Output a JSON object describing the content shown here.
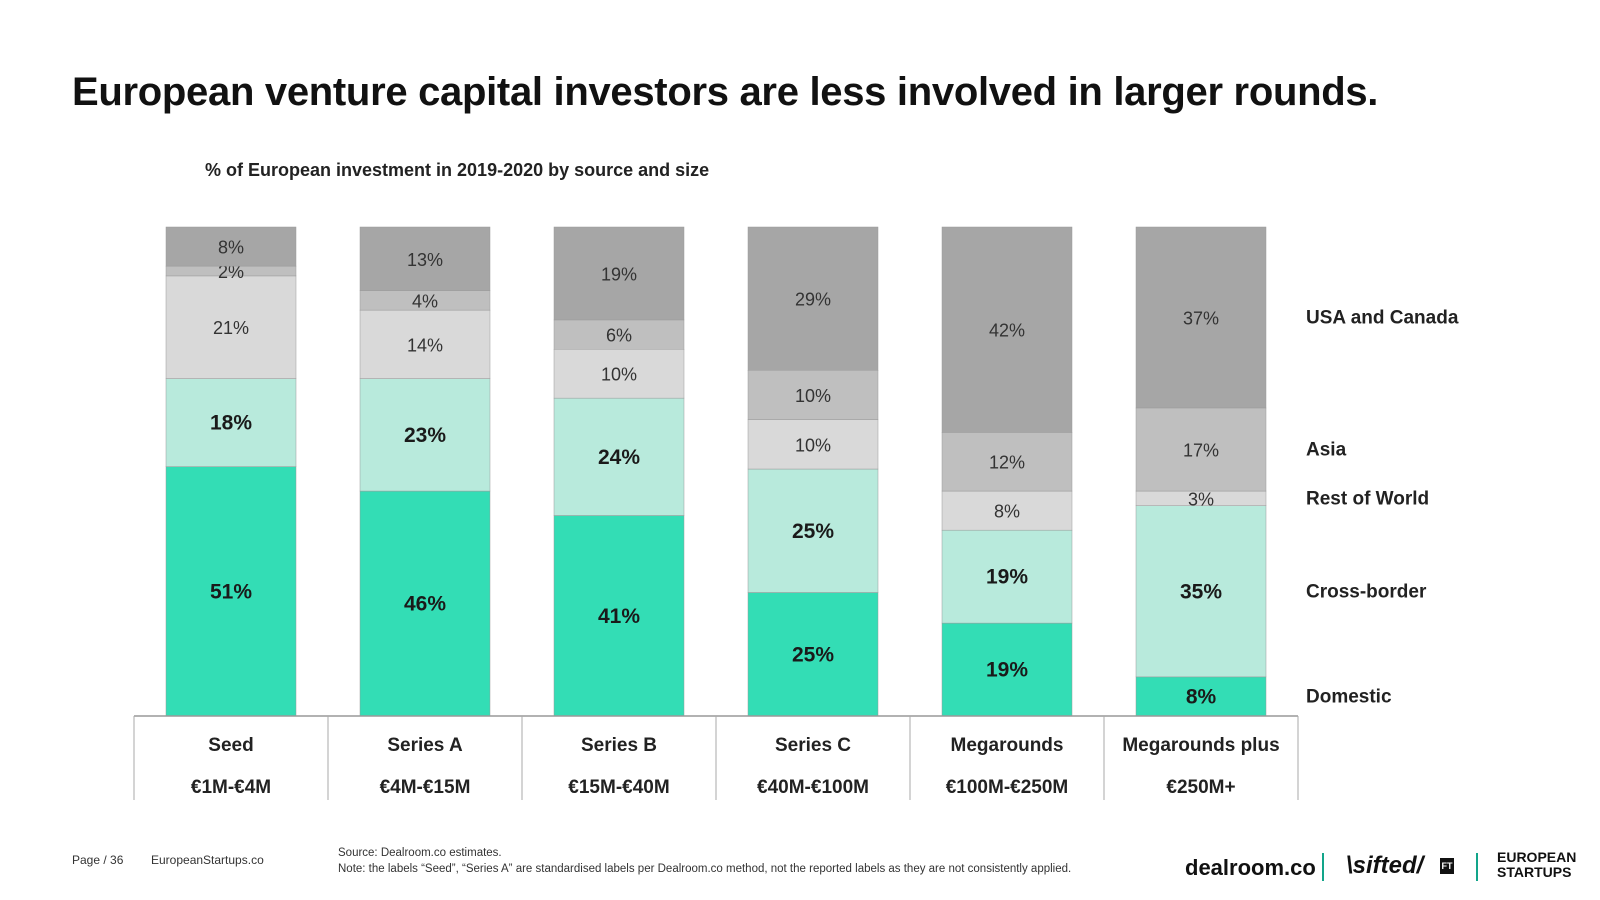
{
  "title": "European venture capital investors are less involved in larger rounds.",
  "subtitle": "% of European investment in 2019-2020 by source and size",
  "chart_data": {
    "type": "bar",
    "stacked": true,
    "categories": [
      "Seed",
      "Series A",
      "Series B",
      "Series C",
      "Megarounds",
      "Megarounds plus"
    ],
    "category_ranges": [
      "€1M-€4M",
      "€4M-€15M",
      "€15M-€40M",
      "€40M-€100M",
      "€100M-€250M",
      "€250M+"
    ],
    "series": [
      {
        "name": "Domestic",
        "color": "#33ddb5",
        "values": [
          51,
          46,
          41,
          25,
          19,
          8
        ]
      },
      {
        "name": "Cross-border",
        "color": "#b8eadc",
        "values": [
          18,
          23,
          24,
          25,
          19,
          35
        ]
      },
      {
        "name": "Rest of World",
        "color": "#d9d9d9",
        "values": [
          21,
          14,
          10,
          10,
          8,
          3
        ]
      },
      {
        "name": "Asia",
        "color": "#bfbfbf",
        "values": [
          2,
          4,
          6,
          10,
          12,
          17
        ]
      },
      {
        "name": "USA and Canada",
        "color": "#a6a6a6",
        "values": [
          8,
          13,
          19,
          29,
          42,
          37
        ]
      }
    ],
    "value_suffix": "%",
    "legend_position": "right",
    "grid": false
  },
  "footer": {
    "page": "Page / 36",
    "site": "EuropeanStartups.co",
    "source": "Source: Dealroom.co estimates.",
    "note": "Note: the labels “Seed”, “Series A” are standardised labels per Dealroom.co method, not the reported labels as they are not consistently applied.",
    "logo_dealroom": "dealroom.co",
    "logo_sifted": "\\sifted/",
    "logo_ft": "FT",
    "logo_es_line1": "EUROPEAN",
    "logo_es_line2": "STARTUPS"
  }
}
